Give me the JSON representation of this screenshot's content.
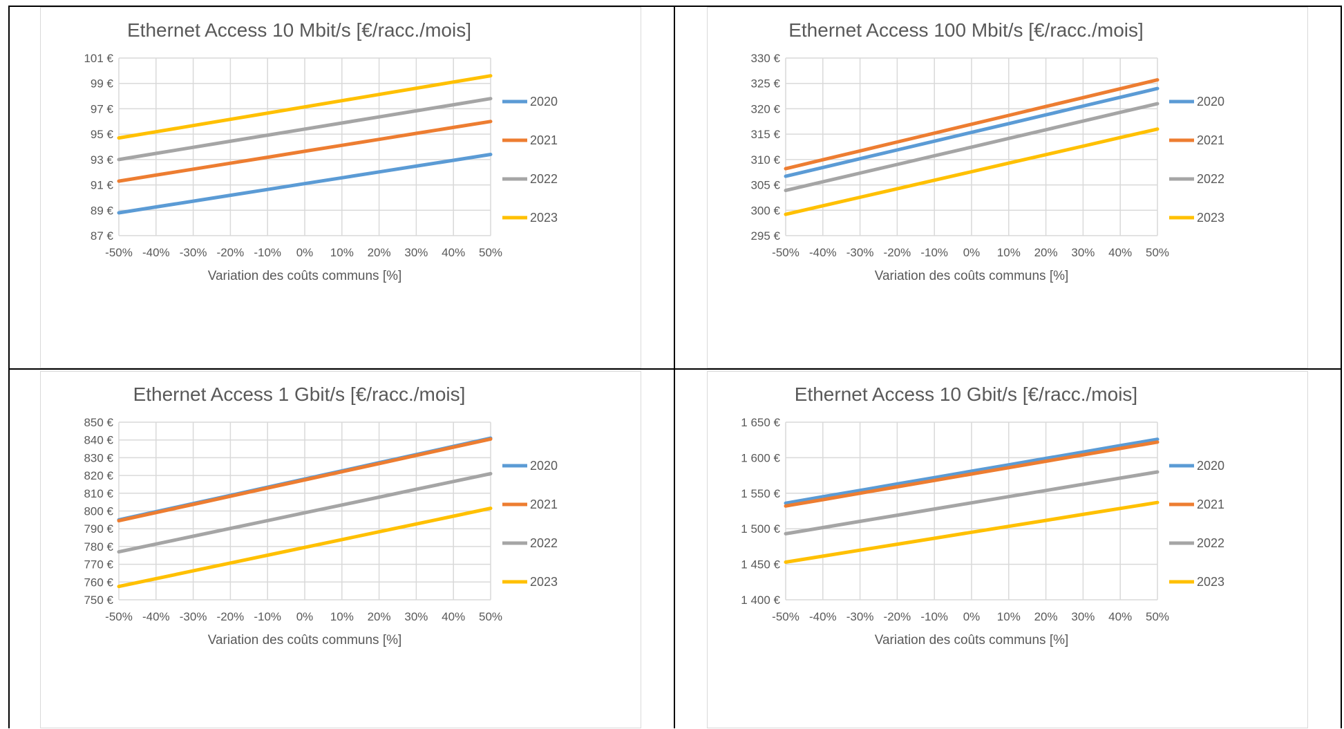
{
  "colors": {
    "2020": "#5b9bd5",
    "2021": "#ed7d31",
    "2022": "#a5a5a5",
    "2023": "#ffc000",
    "grid": "#d9d9d9",
    "text": "#595959"
  },
  "chart_data": [
    {
      "type": "line",
      "title": "Ethernet Access 10 Mbit/s [€/racc./mois]",
      "xlabel": "Variation des coûts communs [%]",
      "ylabel": "",
      "x": [
        -50,
        -40,
        -30,
        -20,
        -10,
        0,
        10,
        20,
        30,
        40,
        50
      ],
      "x_ticks": [
        "-50%",
        "-40%",
        "-30%",
        "-20%",
        "-10%",
        "0%",
        "10%",
        "20%",
        "30%",
        "40%",
        "50%"
      ],
      "ylim": [
        87,
        101
      ],
      "y_ticks": [
        "87 €",
        "89 €",
        "91 €",
        "93 €",
        "95 €",
        "97 €",
        "99 €",
        "101 €"
      ],
      "grid": true,
      "legend_position": "right",
      "series": [
        {
          "name": "2020",
          "values": [
            88.8,
            89.26,
            89.72,
            90.18,
            90.64,
            91.1,
            91.56,
            92.02,
            92.48,
            92.94,
            93.4
          ]
        },
        {
          "name": "2021",
          "values": [
            91.3,
            91.77,
            92.24,
            92.71,
            93.18,
            93.65,
            94.12,
            94.59,
            95.06,
            95.53,
            96.0
          ]
        },
        {
          "name": "2022",
          "values": [
            93.0,
            93.48,
            93.96,
            94.44,
            94.92,
            95.4,
            95.88,
            96.36,
            96.84,
            97.32,
            97.8
          ]
        },
        {
          "name": "2023",
          "values": [
            94.7,
            95.19,
            95.68,
            96.17,
            96.66,
            97.15,
            97.64,
            98.13,
            98.62,
            99.11,
            99.6
          ]
        }
      ]
    },
    {
      "type": "line",
      "title": "Ethernet Access 100 Mbit/s [€/racc./mois]",
      "xlabel": "Variation des coûts communs [%]",
      "ylabel": "",
      "x": [
        -50,
        -40,
        -30,
        -20,
        -10,
        0,
        10,
        20,
        30,
        40,
        50
      ],
      "x_ticks": [
        "-50%",
        "-40%",
        "-30%",
        "-20%",
        "-10%",
        "0%",
        "10%",
        "20%",
        "30%",
        "40%",
        "50%"
      ],
      "ylim": [
        295,
        330
      ],
      "y_ticks": [
        "295 €",
        "300 €",
        "305 €",
        "310 €",
        "315 €",
        "320 €",
        "325 €",
        "330 €"
      ],
      "grid": true,
      "legend_position": "right",
      "series": [
        {
          "name": "2020",
          "values": [
            306.7,
            308.43,
            310.16,
            311.89,
            313.62,
            315.35,
            317.08,
            318.81,
            320.54,
            322.27,
            324.0
          ]
        },
        {
          "name": "2021",
          "values": [
            308.2,
            309.95,
            311.7,
            313.45,
            315.2,
            316.95,
            318.7,
            320.45,
            322.2,
            323.95,
            325.7
          ]
        },
        {
          "name": "2022",
          "values": [
            303.9,
            305.61,
            307.32,
            309.03,
            310.74,
            312.45,
            314.16,
            315.87,
            317.58,
            319.29,
            321.0
          ]
        },
        {
          "name": "2023",
          "values": [
            299.2,
            300.88,
            302.56,
            304.24,
            305.92,
            307.6,
            309.28,
            310.96,
            312.64,
            314.32,
            316.0
          ]
        }
      ]
    },
    {
      "type": "line",
      "title": "Ethernet Access 1 Gbit/s [€/racc./mois]",
      "xlabel": "Variation des coûts communs [%]",
      "ylabel": "",
      "x": [
        -50,
        -40,
        -30,
        -20,
        -10,
        0,
        10,
        20,
        30,
        40,
        50
      ],
      "x_ticks": [
        "-50%",
        "-40%",
        "-30%",
        "-20%",
        "-10%",
        "0%",
        "10%",
        "20%",
        "30%",
        "40%",
        "50%"
      ],
      "ylim": [
        750,
        850
      ],
      "y_ticks": [
        "750 €",
        "760 €",
        "770 €",
        "780 €",
        "790 €",
        "800 €",
        "810 €",
        "820 €",
        "830 €",
        "840 €",
        "850 €"
      ],
      "grid": true,
      "legend_position": "right",
      "series": [
        {
          "name": "2020",
          "values": [
            795.0,
            799.6,
            804.2,
            808.8,
            813.4,
            818.0,
            822.6,
            827.2,
            831.8,
            836.4,
            841.0
          ]
        },
        {
          "name": "2021",
          "values": [
            794.5,
            799.1,
            803.7,
            808.3,
            812.9,
            817.5,
            822.1,
            826.7,
            831.3,
            835.9,
            840.5
          ]
        },
        {
          "name": "2022",
          "values": [
            777.0,
            781.4,
            785.8,
            790.2,
            794.6,
            799.0,
            803.4,
            807.8,
            812.2,
            816.6,
            821.0
          ]
        },
        {
          "name": "2023",
          "values": [
            757.5,
            761.9,
            766.3,
            770.7,
            775.1,
            779.5,
            783.9,
            788.3,
            792.7,
            797.1,
            801.5
          ]
        }
      ]
    },
    {
      "type": "line",
      "title": "Ethernet Access 10 Gbit/s [€/racc./mois]",
      "xlabel": "Variation des coûts communs [%]",
      "ylabel": "",
      "x": [
        -50,
        -40,
        -30,
        -20,
        -10,
        0,
        10,
        20,
        30,
        40,
        50
      ],
      "x_ticks": [
        "-50%",
        "-40%",
        "-30%",
        "-20%",
        "-10%",
        "0%",
        "10%",
        "20%",
        "30%",
        "40%",
        "50%"
      ],
      "ylim": [
        1400,
        1650
      ],
      "y_ticks": [
        "1 400 €",
        "1 450 €",
        "1 500 €",
        "1 550 €",
        "1 600 €",
        "1 650 €"
      ],
      "grid": true,
      "legend_position": "right",
      "series": [
        {
          "name": "2020",
          "values": [
            1536,
            1545,
            1554,
            1563,
            1572,
            1581,
            1590,
            1599,
            1608,
            1617,
            1626
          ]
        },
        {
          "name": "2021",
          "values": [
            1532,
            1541,
            1550,
            1559,
            1568,
            1577,
            1586,
            1595,
            1604,
            1613,
            1622
          ]
        },
        {
          "name": "2022",
          "values": [
            1493,
            1501.7,
            1510.4,
            1519.1,
            1527.8,
            1536.5,
            1545.2,
            1553.9,
            1562.6,
            1571.3,
            1580
          ]
        },
        {
          "name": "2023",
          "values": [
            1453,
            1461.4,
            1469.8,
            1478.2,
            1486.6,
            1495,
            1503.4,
            1511.8,
            1520.2,
            1528.6,
            1537
          ]
        }
      ]
    }
  ]
}
